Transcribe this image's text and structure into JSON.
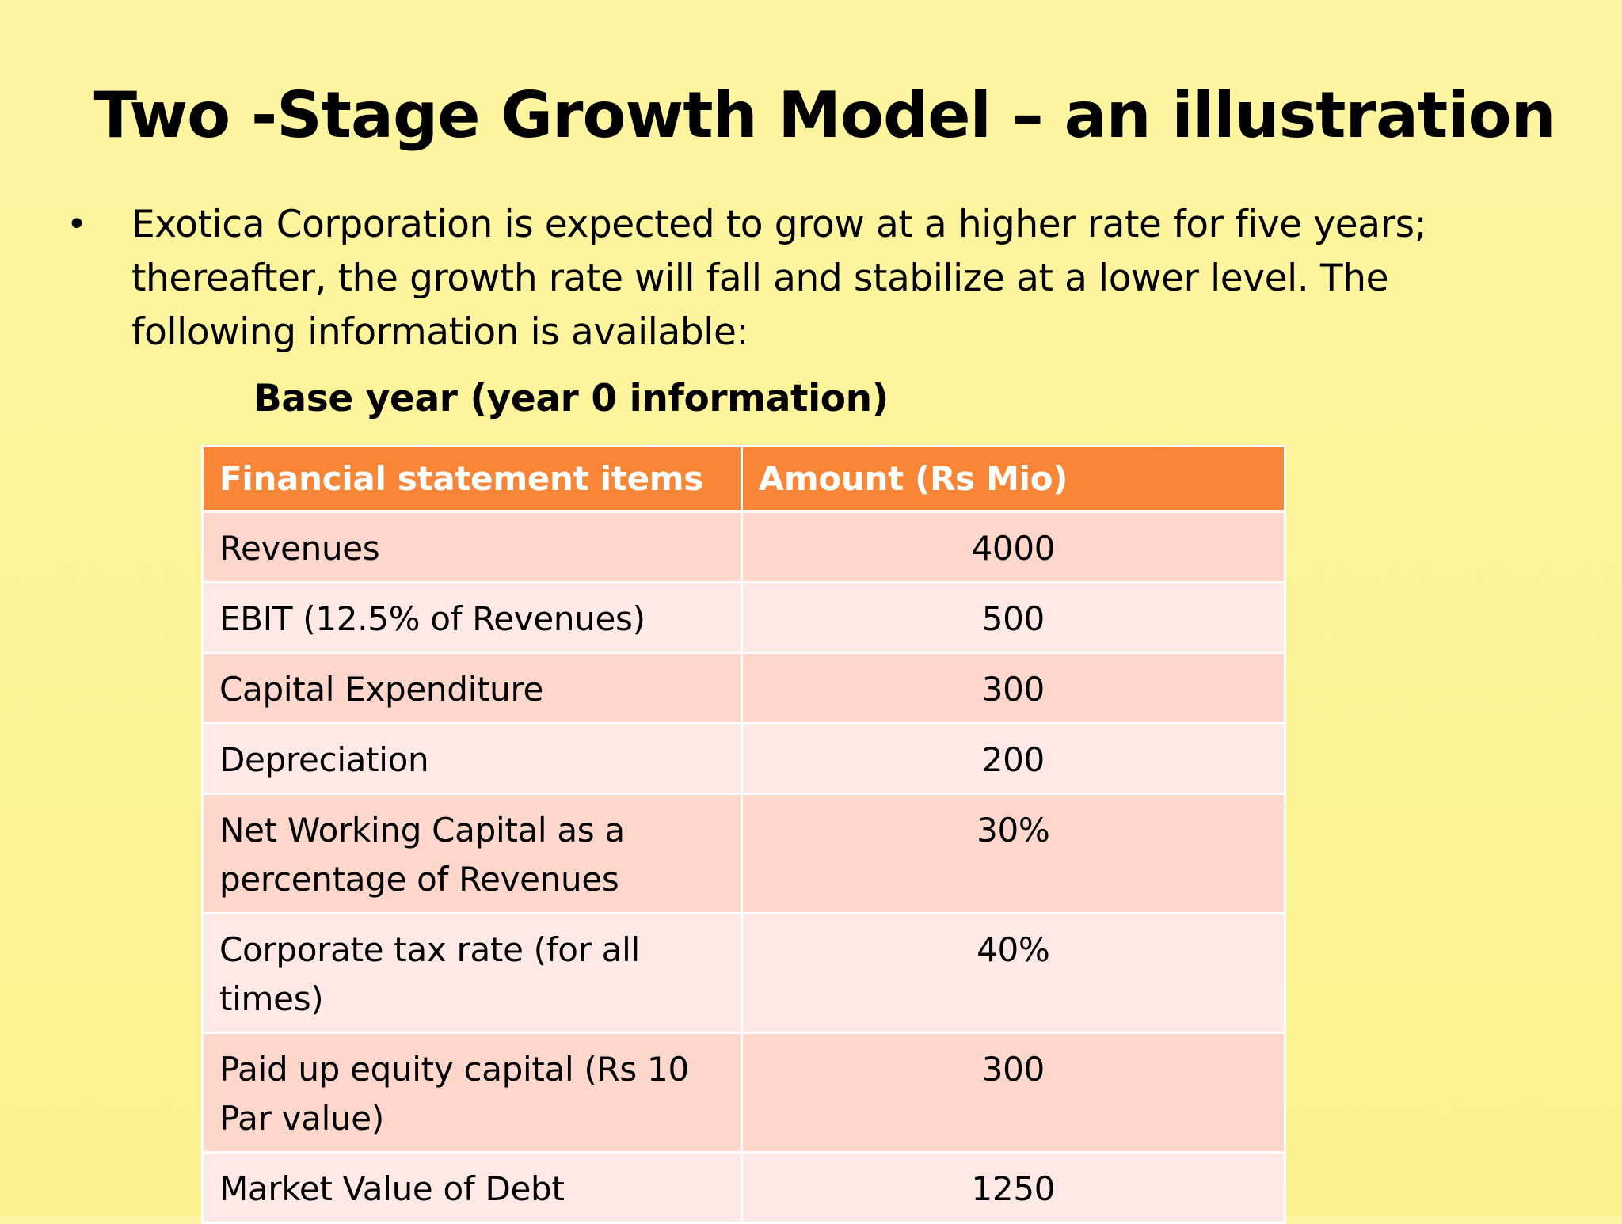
{
  "slide": {
    "title": "Two -Stage Growth Model – an illustration",
    "bullet_symbol": "•",
    "bullet_text": "Exotica Corporation is expected to grow at a higher rate for five years; thereafter, the growth rate will fall and stabilize at a lower level. The following information is available:",
    "subheading": "Base year (year 0 information)"
  },
  "table": {
    "headers": [
      "Financial statement items",
      "Amount (Rs Mio)"
    ],
    "rows": [
      {
        "item": "Revenues",
        "amount": "4000"
      },
      {
        "item": "EBIT (12.5% of Revenues)",
        "amount": "500"
      },
      {
        "item": "Capital Expenditure",
        "amount": "300"
      },
      {
        "item": "Depreciation",
        "amount": "200"
      },
      {
        "item": "Net Working Capital as a percentage of Revenues",
        "amount": "30%"
      },
      {
        "item": "Corporate tax  rate (for all times)",
        "amount": "40%"
      },
      {
        "item": "Paid up equity capital (Rs 10 Par value)",
        "amount": "300"
      },
      {
        "item": "Market Value of Debt",
        "amount": "1250"
      }
    ]
  },
  "colors": {
    "background": "#fdf49c",
    "header_fill": "#f98636",
    "row_odd": "#fdd6cc",
    "row_even": "#fee9e6"
  }
}
